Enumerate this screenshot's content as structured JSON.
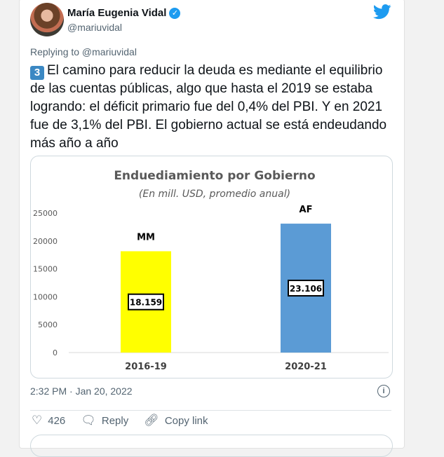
{
  "tweet": {
    "author_name": "María Eugenia Vidal",
    "handle": "@mariuvidal",
    "replying_to": "Replying to @mariuvidal",
    "emoji": "3",
    "text": "El camino para reducir la deuda es mediante el equilibrio de las cuentas públicas, algo que hasta el 2019 se estaba logrando: el déficit primario fue del 0,4% del PBI. Y en 2021 fue de 3,1% del PBI. El gobierno actual se está endeudando más año a año",
    "timestamp": "2:32 PM · Jan 20, 2022",
    "likes": "426",
    "reply_label": "Reply",
    "copy_link_label": "Copy link",
    "icons": [
      "avatar",
      "verified-badge-icon",
      "twitter-bird-icon",
      "info-icon",
      "heart-icon",
      "reply-icon",
      "link-icon"
    ],
    "colors": {
      "accent": "#1d9bf0"
    }
  },
  "chart_data": {
    "type": "bar",
    "title": "Enduediamiento por Gobierno",
    "subtitle": "(En mill. USD, promedio anual)",
    "categories": [
      "2016-19",
      "2020-21"
    ],
    "bar_labels": [
      "MM",
      "AF"
    ],
    "values": [
      18159,
      23106
    ],
    "data_labels": [
      "18.159",
      "23.106"
    ],
    "colors": [
      "#ffff00",
      "#5b9bd5"
    ],
    "yticks": [
      "0",
      "5000",
      "10000",
      "15000",
      "20000",
      "25000"
    ],
    "ylim": [
      0,
      25000
    ],
    "grid": false
  }
}
